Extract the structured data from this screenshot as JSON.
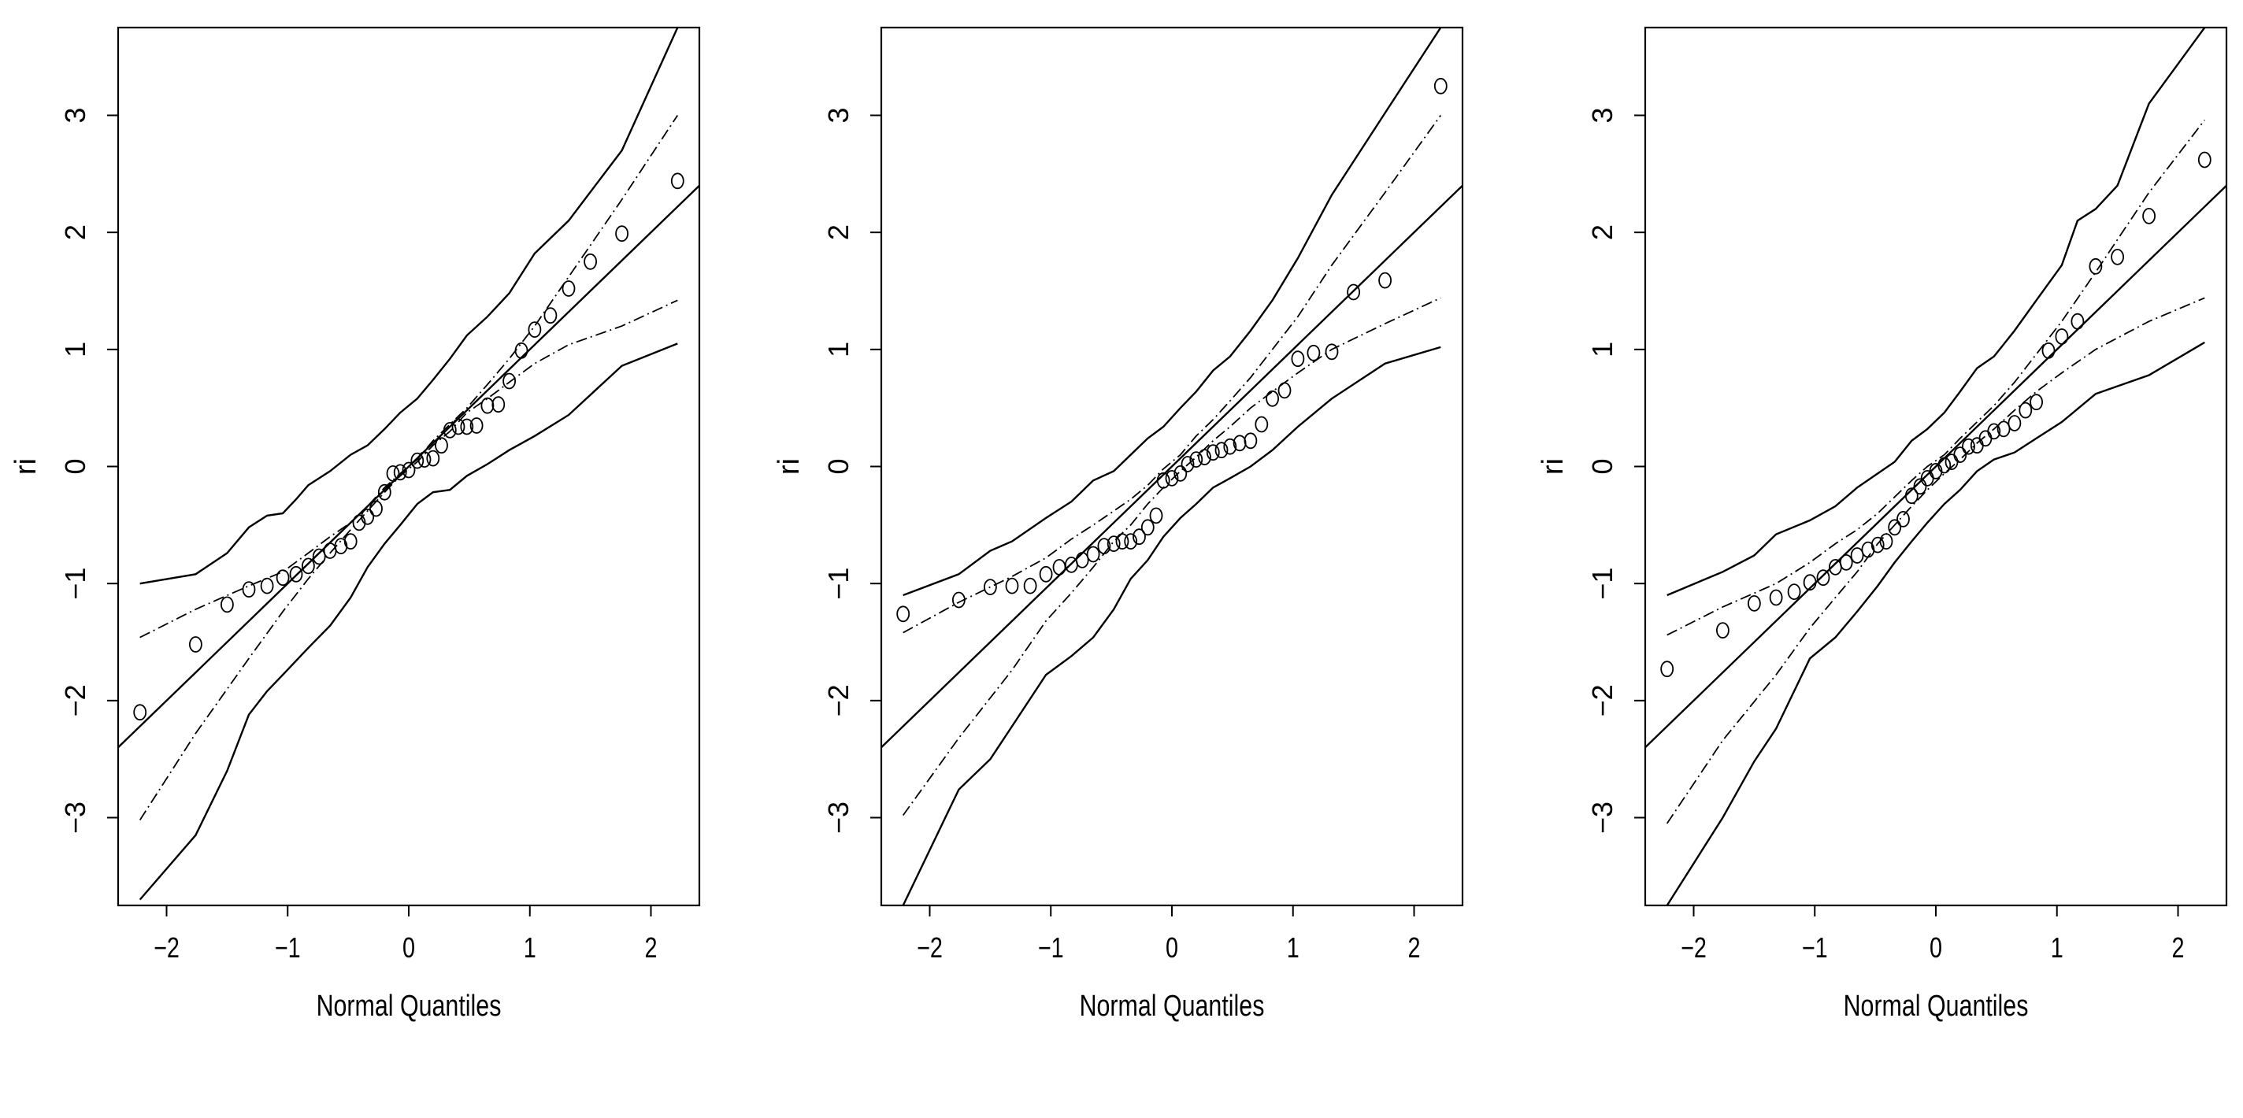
{
  "chart_data": [
    {
      "type": "scatter",
      "title": "",
      "xlabel": "Normal Quantiles",
      "ylabel": "ri",
      "xlim": [
        -2.4,
        2.4
      ],
      "ylim": [
        -3.75,
        3.75
      ],
      "xticks": [
        -2,
        -1,
        0,
        1,
        2
      ],
      "xtick_labels": [
        "−2",
        "−1",
        "0",
        "1",
        "2"
      ],
      "yticks": [
        -3,
        -2,
        -1,
        0,
        1,
        2,
        3
      ],
      "ytick_labels": [
        "−3",
        "−2",
        "−1",
        "0",
        "1",
        "2",
        "3"
      ],
      "grid": false,
      "legend": "none",
      "reference_line": {
        "slope": 1,
        "intercept": 0
      },
      "points": {
        "x": [
          -2.22,
          -1.76,
          -1.5,
          -1.32,
          -1.17,
          -1.04,
          -0.93,
          -0.83,
          -0.74,
          -0.65,
          -0.56,
          -0.48,
          -0.41,
          -0.34,
          -0.27,
          -0.2,
          -0.13,
          -0.07,
          0.0,
          0.07,
          0.13,
          0.2,
          0.27,
          0.34,
          0.41,
          0.48,
          0.56,
          0.65,
          0.74,
          0.83,
          0.93,
          1.04,
          1.17,
          1.32,
          1.5,
          1.76,
          2.22
        ],
        "y": [
          -2.1,
          -1.52,
          -1.18,
          -1.05,
          -1.02,
          -0.95,
          -0.92,
          -0.85,
          -0.77,
          -0.72,
          -0.68,
          -0.64,
          -0.48,
          -0.43,
          -0.36,
          -0.22,
          -0.06,
          -0.05,
          -0.03,
          0.05,
          0.06,
          0.07,
          0.18,
          0.31,
          0.34,
          0.34,
          0.35,
          0.52,
          0.53,
          0.73,
          0.99,
          1.17,
          1.29,
          1.52,
          1.75,
          1.99,
          2.44
        ]
      },
      "envelope_outer": [
        {
          "x": [
            -2.22,
            -1.76,
            -1.5,
            -1.32,
            -1.17,
            -1.04,
            -0.93,
            -0.83,
            -0.65,
            -0.48,
            -0.34,
            -0.2,
            -0.07,
            0.07,
            0.2,
            0.34,
            0.48,
            0.65,
            0.83,
            1.04,
            1.32,
            1.76,
            2.22
          ],
          "y": [
            -1.0,
            -0.92,
            -0.74,
            -0.52,
            -0.42,
            -0.4,
            -0.28,
            -0.16,
            -0.04,
            0.1,
            0.18,
            0.32,
            0.46,
            0.58,
            0.74,
            0.92,
            1.12,
            1.28,
            1.48,
            1.82,
            2.1,
            2.7,
            3.75
          ]
        },
        {
          "x": [
            -2.22,
            -1.76,
            -1.5,
            -1.32,
            -1.17,
            -1.04,
            -0.83,
            -0.65,
            -0.48,
            -0.34,
            -0.2,
            -0.07,
            0.07,
            0.2,
            0.34,
            0.48,
            0.65,
            0.83,
            1.04,
            1.32,
            1.76,
            2.22
          ],
          "y": [
            -3.7,
            -3.15,
            -2.6,
            -2.12,
            -1.92,
            -1.78,
            -1.55,
            -1.36,
            -1.12,
            -0.86,
            -0.66,
            -0.5,
            -0.32,
            -0.22,
            -0.2,
            -0.08,
            0.02,
            0.14,
            0.26,
            0.44,
            0.86,
            1.05
          ]
        }
      ],
      "envelope_inner": [
        {
          "x": [
            -2.22,
            -1.76,
            -1.32,
            -1.04,
            -0.83,
            -0.65,
            -0.48,
            -0.34,
            -0.2,
            -0.07,
            0.07,
            0.2,
            0.34,
            0.48,
            0.65,
            0.83,
            1.04,
            1.32,
            1.76,
            2.22
          ],
          "y": [
            -1.46,
            -1.22,
            -1.02,
            -0.9,
            -0.74,
            -0.6,
            -0.48,
            -0.34,
            -0.18,
            -0.06,
            0.06,
            0.22,
            0.36,
            0.5,
            0.7,
            0.92,
            1.2,
            1.62,
            2.28,
            3.0
          ]
        },
        {
          "x": [
            -2.22,
            -1.76,
            -1.32,
            -1.04,
            -0.83,
            -0.65,
            -0.48,
            -0.34,
            -0.2,
            -0.07,
            0.07,
            0.2,
            0.34,
            0.48,
            0.65,
            0.83,
            1.04,
            1.32,
            1.76,
            2.22
          ],
          "y": [
            -3.02,
            -2.28,
            -1.64,
            -1.24,
            -0.96,
            -0.74,
            -0.54,
            -0.38,
            -0.22,
            -0.08,
            0.04,
            0.18,
            0.3,
            0.46,
            0.58,
            0.72,
            0.88,
            1.04,
            1.2,
            1.42
          ]
        }
      ]
    },
    {
      "type": "scatter",
      "title": "",
      "xlabel": "Normal Quantiles",
      "ylabel": "ri",
      "xlim": [
        -2.4,
        2.4
      ],
      "ylim": [
        -3.75,
        3.75
      ],
      "xticks": [
        -2,
        -1,
        0,
        1,
        2
      ],
      "xtick_labels": [
        "−2",
        "−1",
        "0",
        "1",
        "2"
      ],
      "yticks": [
        -3,
        -2,
        -1,
        0,
        1,
        2,
        3
      ],
      "ytick_labels": [
        "−3",
        "−2",
        "−1",
        "0",
        "1",
        "2",
        "3"
      ],
      "grid": false,
      "legend": "none",
      "reference_line": {
        "slope": 1,
        "intercept": 0
      },
      "points": {
        "x": [
          -2.22,
          -1.76,
          -1.5,
          -1.32,
          -1.17,
          -1.04,
          -0.93,
          -0.83,
          -0.74,
          -0.65,
          -0.56,
          -0.48,
          -0.41,
          -0.34,
          -0.27,
          -0.2,
          -0.13,
          -0.07,
          0.0,
          0.07,
          0.13,
          0.2,
          0.27,
          0.34,
          0.41,
          0.48,
          0.56,
          0.65,
          0.74,
          0.83,
          0.93,
          1.04,
          1.17,
          1.32,
          1.5,
          1.76,
          2.22
        ],
        "y": [
          -1.26,
          -1.14,
          -1.03,
          -1.02,
          -1.02,
          -0.92,
          -0.86,
          -0.84,
          -0.8,
          -0.75,
          -0.68,
          -0.66,
          -0.64,
          -0.64,
          -0.6,
          -0.52,
          -0.42,
          -0.12,
          -0.1,
          -0.06,
          0.02,
          0.06,
          0.08,
          0.12,
          0.14,
          0.17,
          0.2,
          0.22,
          0.36,
          0.58,
          0.65,
          0.92,
          0.97,
          0.98,
          1.49,
          1.59,
          3.25
        ]
      },
      "envelope_outer": [
        {
          "x": [
            -2.22,
            -1.76,
            -1.5,
            -1.32,
            -1.04,
            -0.83,
            -0.65,
            -0.48,
            -0.34,
            -0.2,
            -0.07,
            0.07,
            0.2,
            0.34,
            0.48,
            0.65,
            0.83,
            1.04,
            1.32,
            1.76,
            2.22
          ],
          "y": [
            -1.1,
            -0.92,
            -0.72,
            -0.64,
            -0.44,
            -0.3,
            -0.12,
            -0.04,
            0.1,
            0.24,
            0.34,
            0.5,
            0.64,
            0.82,
            0.94,
            1.16,
            1.42,
            1.78,
            2.32,
            3.02,
            3.75
          ]
        },
        {
          "x": [
            -2.22,
            -1.76,
            -1.5,
            -1.32,
            -1.04,
            -0.83,
            -0.65,
            -0.48,
            -0.34,
            -0.2,
            -0.07,
            0.07,
            0.2,
            0.34,
            0.48,
            0.65,
            0.83,
            1.04,
            1.32,
            1.76,
            2.22
          ],
          "y": [
            -3.75,
            -2.76,
            -2.5,
            -2.22,
            -1.78,
            -1.62,
            -1.46,
            -1.22,
            -0.96,
            -0.8,
            -0.6,
            -0.44,
            -0.32,
            -0.18,
            -0.1,
            0.0,
            0.14,
            0.34,
            0.58,
            0.88,
            1.02
          ]
        }
      ],
      "envelope_inner": [
        {
          "x": [
            -2.22,
            -1.76,
            -1.32,
            -1.04,
            -0.83,
            -0.65,
            -0.48,
            -0.34,
            -0.2,
            -0.07,
            0.07,
            0.2,
            0.34,
            0.48,
            0.65,
            0.83,
            1.04,
            1.32,
            1.76,
            2.22
          ],
          "y": [
            -1.42,
            -1.16,
            -0.94,
            -0.78,
            -0.62,
            -0.5,
            -0.38,
            -0.28,
            -0.16,
            -0.02,
            0.1,
            0.26,
            0.4,
            0.56,
            0.76,
            1.0,
            1.28,
            1.72,
            2.34,
            3.0
          ]
        },
        {
          "x": [
            -2.22,
            -1.76,
            -1.32,
            -1.04,
            -0.83,
            -0.65,
            -0.48,
            -0.34,
            -0.2,
            -0.07,
            0.07,
            0.2,
            0.34,
            0.48,
            0.65,
            0.83,
            1.04,
            1.32,
            1.76,
            2.22
          ],
          "y": [
            -2.98,
            -2.32,
            -1.74,
            -1.32,
            -1.08,
            -0.86,
            -0.64,
            -0.5,
            -0.32,
            -0.18,
            -0.04,
            0.08,
            0.22,
            0.34,
            0.5,
            0.64,
            0.8,
            1.0,
            1.22,
            1.44
          ]
        }
      ]
    },
    {
      "type": "scatter",
      "title": "",
      "xlabel": "Normal Quantiles",
      "ylabel": "ri",
      "xlim": [
        -2.4,
        2.4
      ],
      "ylim": [
        -3.75,
        3.75
      ],
      "xticks": [
        -2,
        -1,
        0,
        1,
        2
      ],
      "xtick_labels": [
        "−2",
        "−1",
        "0",
        "1",
        "2"
      ],
      "yticks": [
        -3,
        -2,
        -1,
        0,
        1,
        2,
        3
      ],
      "ytick_labels": [
        "−3",
        "−2",
        "−1",
        "0",
        "1",
        "2",
        "3"
      ],
      "grid": false,
      "legend": "none",
      "reference_line": {
        "slope": 1,
        "intercept": 0
      },
      "points": {
        "x": [
          -2.22,
          -1.76,
          -1.5,
          -1.32,
          -1.17,
          -1.04,
          -0.93,
          -0.83,
          -0.74,
          -0.65,
          -0.56,
          -0.48,
          -0.41,
          -0.34,
          -0.27,
          -0.2,
          -0.13,
          -0.07,
          0.0,
          0.07,
          0.13,
          0.2,
          0.27,
          0.34,
          0.41,
          0.48,
          0.56,
          0.65,
          0.74,
          0.83,
          0.93,
          1.04,
          1.17,
          1.32,
          1.5,
          1.76,
          2.22
        ],
        "y": [
          -1.73,
          -1.4,
          -1.17,
          -1.12,
          -1.07,
          -0.99,
          -0.95,
          -0.86,
          -0.82,
          -0.76,
          -0.71,
          -0.67,
          -0.64,
          -0.52,
          -0.45,
          -0.25,
          -0.17,
          -0.1,
          -0.04,
          0.01,
          0.04,
          0.1,
          0.17,
          0.18,
          0.24,
          0.3,
          0.32,
          0.37,
          0.48,
          0.55,
          0.99,
          1.11,
          1.24,
          1.71,
          1.79,
          2.14,
          2.62
        ]
      },
      "envelope_outer": [
        {
          "x": [
            -2.22,
            -1.76,
            -1.5,
            -1.32,
            -1.04,
            -0.83,
            -0.65,
            -0.48,
            -0.34,
            -0.2,
            -0.07,
            0.07,
            0.2,
            0.34,
            0.48,
            0.65,
            0.83,
            1.04,
            1.17,
            1.32,
            1.5,
            1.76,
            2.22
          ],
          "y": [
            -1.1,
            -0.9,
            -0.76,
            -0.58,
            -0.46,
            -0.34,
            -0.18,
            -0.06,
            0.04,
            0.22,
            0.32,
            0.46,
            0.64,
            0.84,
            0.94,
            1.16,
            1.42,
            1.72,
            2.1,
            2.2,
            2.4,
            3.1,
            3.75
          ]
        },
        {
          "x": [
            -2.22,
            -1.76,
            -1.5,
            -1.32,
            -1.04,
            -0.83,
            -0.65,
            -0.48,
            -0.34,
            -0.2,
            -0.07,
            0.07,
            0.2,
            0.34,
            0.48,
            0.65,
            0.83,
            1.04,
            1.32,
            1.76,
            2.22
          ],
          "y": [
            -3.75,
            -3.0,
            -2.52,
            -2.24,
            -1.64,
            -1.46,
            -1.24,
            -1.02,
            -0.82,
            -0.64,
            -0.48,
            -0.32,
            -0.2,
            -0.04,
            0.06,
            0.12,
            0.24,
            0.38,
            0.62,
            0.78,
            1.06
          ]
        }
      ],
      "envelope_inner": [
        {
          "x": [
            -2.22,
            -1.76,
            -1.32,
            -1.04,
            -0.83,
            -0.65,
            -0.48,
            -0.34,
            -0.2,
            -0.07,
            0.07,
            0.2,
            0.34,
            0.48,
            0.65,
            0.83,
            1.04,
            1.32,
            1.76,
            2.22
          ],
          "y": [
            -1.44,
            -1.2,
            -1.0,
            -0.82,
            -0.66,
            -0.54,
            -0.4,
            -0.26,
            -0.12,
            0.0,
            0.1,
            0.24,
            0.38,
            0.52,
            0.72,
            0.96,
            1.24,
            1.66,
            2.34,
            2.96
          ]
        },
        {
          "x": [
            -2.22,
            -1.76,
            -1.32,
            -1.04,
            -0.83,
            -0.65,
            -0.48,
            -0.34,
            -0.2,
            -0.07,
            0.07,
            0.2,
            0.34,
            0.48,
            0.65,
            0.83,
            1.04,
            1.32,
            1.76,
            2.22
          ],
          "y": [
            -3.05,
            -2.34,
            -1.78,
            -1.38,
            -1.12,
            -0.9,
            -0.66,
            -0.5,
            -0.34,
            -0.2,
            -0.06,
            0.06,
            0.2,
            0.32,
            0.48,
            0.64,
            0.8,
            1.0,
            1.24,
            1.44
          ]
        }
      ]
    }
  ]
}
